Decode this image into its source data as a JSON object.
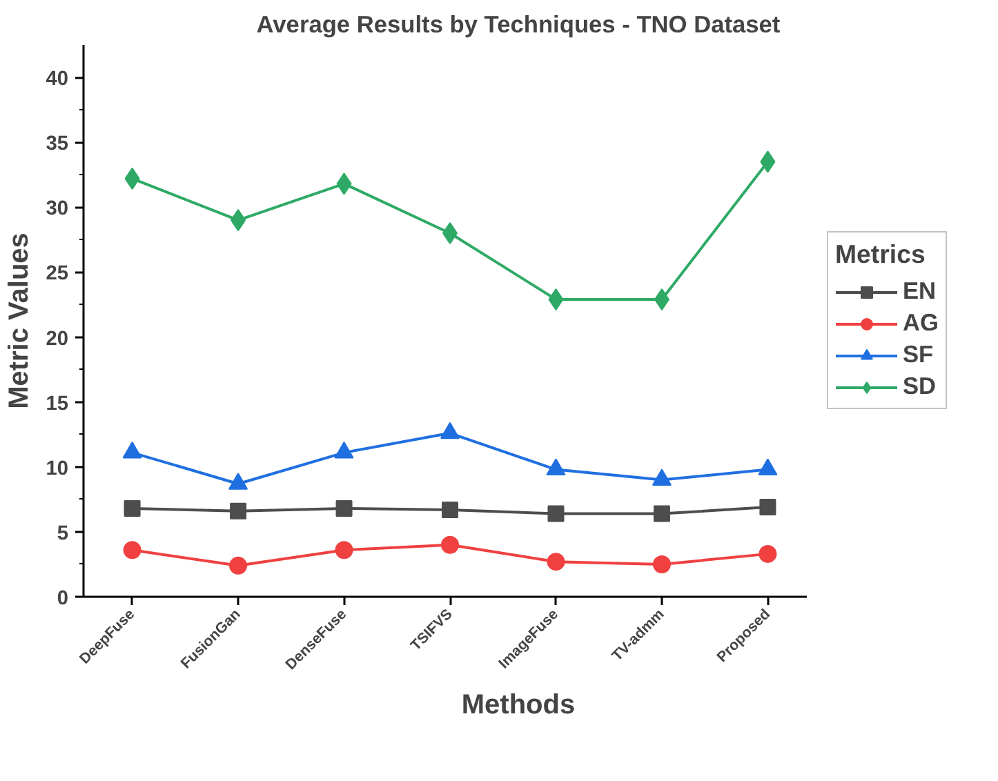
{
  "chart_data": {
    "type": "line",
    "title": "Average Results by Techniques - TNO Dataset",
    "xlabel": "Methods",
    "ylabel": "Metric Values",
    "legend_title": "Metrics",
    "categories": [
      "DeepFuse",
      "FusionGan",
      "DenseFuse",
      "TSIFVS",
      "ImageFuse",
      "TV-admm",
      "Proposed"
    ],
    "series": [
      {
        "name": "EN",
        "color": "#4d4d4d",
        "marker": "square",
        "values": [
          6.8,
          6.6,
          6.8,
          6.7,
          6.4,
          6.4,
          6.9
        ]
      },
      {
        "name": "AG",
        "color": "#f04040",
        "marker": "circle",
        "values": [
          3.6,
          2.4,
          3.6,
          4.0,
          2.7,
          2.5,
          3.3
        ]
      },
      {
        "name": "SF",
        "color": "#1f6fe0",
        "marker": "triangle",
        "values": [
          11.1,
          8.7,
          11.1,
          12.6,
          9.8,
          9.0,
          9.8
        ]
      },
      {
        "name": "SD",
        "color": "#2eaa66",
        "marker": "diamond",
        "values": [
          32.2,
          29.0,
          31.8,
          28.0,
          22.9,
          22.9,
          33.5
        ]
      }
    ],
    "ylim": [
      0,
      42.5
    ],
    "yticks": [
      0,
      5,
      10,
      15,
      20,
      25,
      30,
      35,
      40
    ],
    "grid": false,
    "legend": "right",
    "line_style": "solid"
  }
}
